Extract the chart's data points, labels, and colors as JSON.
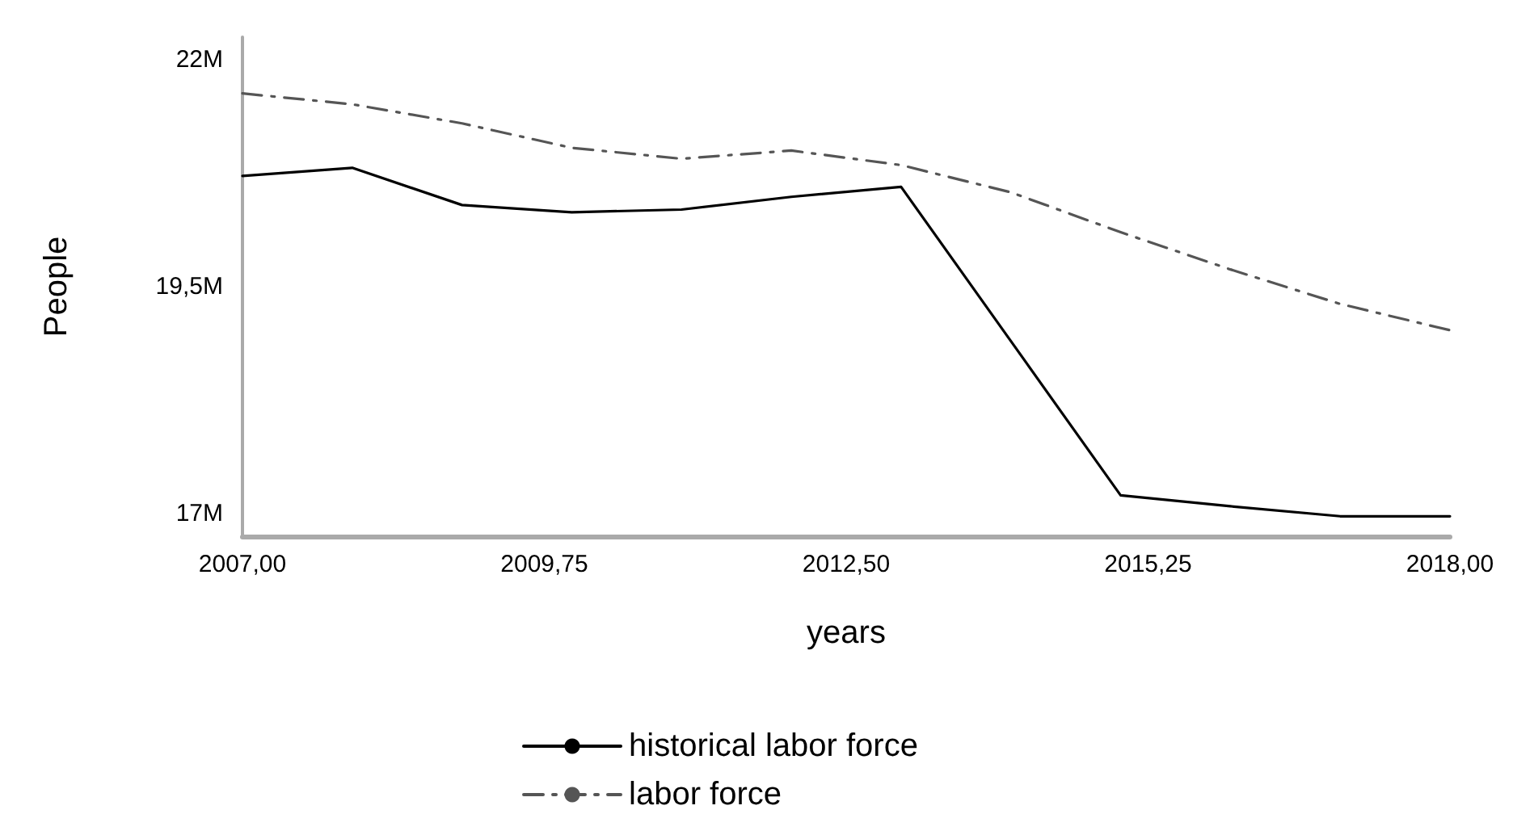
{
  "chart_data": {
    "type": "line",
    "xlabel": "years",
    "ylabel": "People",
    "x": [
      2007,
      2008,
      2009,
      2010,
      2011,
      2012,
      2013,
      2014,
      2015,
      2016,
      2017,
      2018
    ],
    "series": [
      {
        "name": "historical labor force",
        "color": "#000000",
        "line_style": "solid",
        "values": [
          20.72,
          20.81,
          20.4,
          20.32,
          20.35,
          20.49,
          20.6,
          18.9,
          17.2,
          17.08,
          16.97,
          16.97
        ]
      },
      {
        "name": "labor force",
        "color": "#555555",
        "line_style": "dashed",
        "values": [
          21.63,
          21.51,
          21.3,
          21.03,
          20.91,
          21.0,
          20.84,
          20.54,
          20.1,
          19.69,
          19.31,
          19.02
        ]
      }
    ],
    "xlim": [
      2007,
      2018
    ],
    "xticks": [
      {
        "value": 2007,
        "label": "2007,00"
      },
      {
        "value": 2009.75,
        "label": "2009,75"
      },
      {
        "value": 2012.5,
        "label": "2012,50"
      },
      {
        "value": 2015.25,
        "label": "2015,25"
      },
      {
        "value": 2018,
        "label": "2018,00"
      }
    ],
    "ylim": [
      16.75,
      22.25
    ],
    "yticks": [
      {
        "value": 17,
        "label": "17M"
      },
      {
        "value": 19.5,
        "label": "19,5M"
      },
      {
        "value": 22,
        "label": "22M"
      }
    ],
    "grid": false,
    "legend": "bottom",
    "marker": "none"
  }
}
